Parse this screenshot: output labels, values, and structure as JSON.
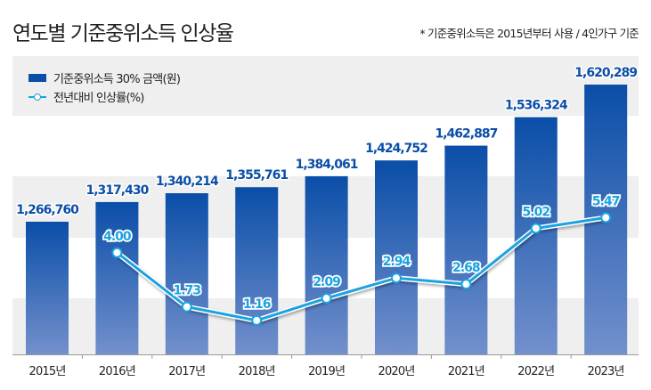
{
  "header": {
    "title": "연도별 기준중위소득 인상율",
    "note": "* 기준중위소득은 2015년부터 사용 / 4인가구 기준"
  },
  "colors": {
    "bar": "#0a4ea8",
    "bar_light": "#6f8cc8",
    "line": "#1aa3e0",
    "band": "#efefef"
  },
  "chart_data": {
    "type": "bar",
    "title": "연도별 기준중위소득 인상율",
    "categories": [
      "2015년",
      "2016년",
      "2017년",
      "2018년",
      "2019년",
      "2020년",
      "2021년",
      "2022년",
      "2023년"
    ],
    "legend_placement": "top-left",
    "series": [
      {
        "name": "기준중위소득 30% 금액(원)",
        "type": "bar",
        "values": [
          1266760,
          1317430,
          1340214,
          1355761,
          1384061,
          1424752,
          1462887,
          1536324,
          1620289
        ],
        "labels": [
          "1,266,760",
          "1,317,430",
          "1,340,214",
          "1,355,761",
          "1,384,061",
          "1,424,752",
          "1,462,887",
          "1,536,324",
          "1,620,289"
        ]
      },
      {
        "name": "전년대비 인상률(%)",
        "type": "line",
        "values": [
          null,
          4.0,
          1.73,
          1.16,
          2.09,
          2.94,
          2.68,
          5.02,
          5.47
        ],
        "labels": [
          "",
          "4.00",
          "1.73",
          "1.16",
          "2.09",
          "2.94",
          "2.68",
          "5.02",
          "5.47"
        ]
      }
    ]
  }
}
